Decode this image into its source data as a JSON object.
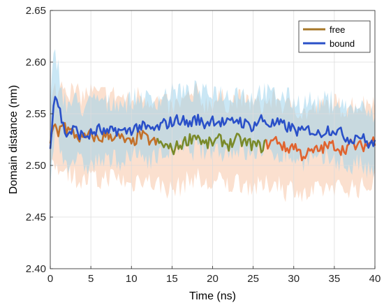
{
  "chart_data": {
    "type": "line",
    "title": "",
    "xlabel": "Time (ns)",
    "ylabel": "Domain distance (nm)",
    "xlim": [
      0,
      40
    ],
    "ylim": [
      2.4,
      2.65
    ],
    "xticks": [
      "0",
      "5",
      "10",
      "15",
      "20",
      "25",
      "30",
      "35",
      "40"
    ],
    "yticks": [
      "2.40",
      "2.45",
      "2.50",
      "2.55",
      "2.60",
      "2.65"
    ],
    "grid": true,
    "legend_position": "top-right",
    "series": [
      {
        "name": "free",
        "line_colors": [
          "#c2702a",
          "#7a8a2a",
          "#e0632e"
        ],
        "legend_color": "#a67728",
        "band_color": "#f7c7a8",
        "x": [
          0,
          0.5,
          1,
          1.5,
          2,
          3,
          4,
          5,
          6,
          7,
          8,
          9,
          10,
          11,
          12,
          13,
          14,
          15,
          16,
          17,
          18,
          19,
          20,
          21,
          22,
          23,
          24,
          25,
          26,
          27,
          28,
          29,
          30,
          31,
          32,
          33,
          34,
          35,
          36,
          37,
          38,
          39,
          40
        ],
        "values": [
          2.52,
          2.54,
          2.53,
          2.545,
          2.535,
          2.53,
          2.525,
          2.53,
          2.525,
          2.53,
          2.528,
          2.525,
          2.52,
          2.53,
          2.525,
          2.522,
          2.52,
          2.515,
          2.52,
          2.525,
          2.53,
          2.52,
          2.522,
          2.525,
          2.52,
          2.525,
          2.522,
          2.52,
          2.518,
          2.522,
          2.525,
          2.515,
          2.52,
          2.51,
          2.512,
          2.515,
          2.518,
          2.52,
          2.515,
          2.52,
          2.518,
          2.52,
          2.525
        ],
        "band_halfwidth": [
          0.03,
          0.035,
          0.038,
          0.04,
          0.04,
          0.04,
          0.042,
          0.042,
          0.042,
          0.04,
          0.04,
          0.04,
          0.04,
          0.04,
          0.04,
          0.04,
          0.04,
          0.04,
          0.04,
          0.04,
          0.04,
          0.04,
          0.04,
          0.04,
          0.04,
          0.04,
          0.04,
          0.04,
          0.04,
          0.04,
          0.04,
          0.04,
          0.04,
          0.04,
          0.04,
          0.04,
          0.04,
          0.04,
          0.04,
          0.04,
          0.04,
          0.04,
          0.04
        ]
      },
      {
        "name": "bound",
        "line_colors": [
          "#2a50c8"
        ],
        "legend_color": "#2a50c8",
        "band_color": "#9fd3ec",
        "x": [
          0,
          0.5,
          1,
          1.5,
          2,
          3,
          4,
          5,
          6,
          7,
          8,
          9,
          10,
          11,
          12,
          13,
          14,
          15,
          16,
          17,
          18,
          19,
          20,
          21,
          22,
          23,
          24,
          25,
          26,
          27,
          28,
          29,
          30,
          31,
          32,
          33,
          34,
          35,
          36,
          37,
          38,
          39,
          40
        ],
        "values": [
          2.52,
          2.57,
          2.56,
          2.54,
          2.53,
          2.535,
          2.528,
          2.53,
          2.535,
          2.53,
          2.535,
          2.532,
          2.535,
          2.538,
          2.535,
          2.535,
          2.54,
          2.542,
          2.545,
          2.54,
          2.545,
          2.54,
          2.545,
          2.542,
          2.54,
          2.545,
          2.54,
          2.538,
          2.545,
          2.54,
          2.54,
          2.538,
          2.535,
          2.532,
          2.535,
          2.53,
          2.535,
          2.535,
          2.53,
          2.525,
          2.53,
          2.522,
          2.52
        ],
        "band_halfwidth": [
          0.04,
          0.04,
          0.035,
          0.03,
          0.028,
          0.028,
          0.028,
          0.03,
          0.03,
          0.028,
          0.028,
          0.028,
          0.028,
          0.028,
          0.028,
          0.028,
          0.028,
          0.028,
          0.028,
          0.028,
          0.028,
          0.028,
          0.028,
          0.028,
          0.028,
          0.028,
          0.028,
          0.028,
          0.028,
          0.028,
          0.028,
          0.028,
          0.028,
          0.028,
          0.028,
          0.028,
          0.028,
          0.028,
          0.028,
          0.028,
          0.028,
          0.028,
          0.028
        ]
      }
    ]
  }
}
